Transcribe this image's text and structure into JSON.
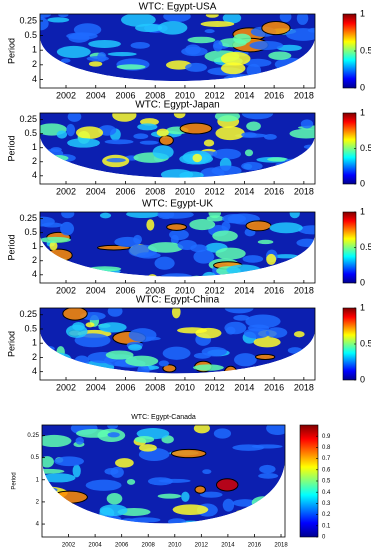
{
  "chart_data": [
    {
      "type": "wavelet-coherence",
      "title": "WTC: Egypt-USA",
      "ylabel": "Period",
      "colormap": "jet",
      "log_scale": true,
      "xlim": [
        2000.25,
        2018.75
      ],
      "xticks": [
        2002,
        2004,
        2006,
        2008,
        2010,
        2012,
        2014,
        2016,
        2018
      ],
      "ylim": [
        0.18,
        6
      ],
      "yticks": [
        0.25,
        0.5,
        1,
        2,
        4
      ],
      "colorbar": {
        "lim": [
          0,
          1
        ],
        "ticks": [
          0,
          0.5,
          1
        ]
      }
    },
    {
      "type": "wavelet-coherence",
      "title": "WTC: Egypt-Japan",
      "ylabel": "Period",
      "colormap": "jet",
      "log_scale": true,
      "xlim": [
        2000.25,
        2018.75
      ],
      "xticks": [
        2002,
        2004,
        2006,
        2008,
        2010,
        2012,
        2014,
        2016,
        2018
      ],
      "ylim": [
        0.18,
        6
      ],
      "yticks": [
        0.25,
        0.5,
        1,
        2,
        4
      ],
      "colorbar": {
        "lim": [
          0,
          1
        ],
        "ticks": [
          0,
          0.5,
          1
        ]
      }
    },
    {
      "type": "wavelet-coherence",
      "title": "WTC: Egypt-UK",
      "ylabel": "Period",
      "colormap": "jet",
      "log_scale": true,
      "xlim": [
        2000.25,
        2018.75
      ],
      "xticks": [
        2002,
        2004,
        2006,
        2008,
        2010,
        2012,
        2014,
        2016,
        2018
      ],
      "ylim": [
        0.18,
        6
      ],
      "yticks": [
        0.25,
        0.5,
        1,
        2,
        4
      ],
      "colorbar": {
        "lim": [
          0,
          1
        ],
        "ticks": [
          0,
          0.5,
          1
        ]
      }
    },
    {
      "type": "wavelet-coherence",
      "title": "WTC: Egypt-China",
      "ylabel": "Period",
      "colormap": "jet",
      "log_scale": true,
      "xlim": [
        2000.25,
        2018.75
      ],
      "xticks": [
        2002,
        2004,
        2006,
        2008,
        2010,
        2012,
        2014,
        2016,
        2018
      ],
      "ylim": [
        0.18,
        6
      ],
      "yticks": [
        0.25,
        0.5,
        1,
        2,
        4
      ],
      "colorbar": {
        "lim": [
          0,
          1
        ],
        "ticks": [
          0,
          0.5,
          1
        ]
      }
    },
    {
      "type": "wavelet-coherence",
      "title": "WTC: Egypt-Canada",
      "ylabel": "Period",
      "colormap": "jet",
      "log_scale": true,
      "xlim": [
        2000,
        2018.3
      ],
      "xticks": [
        2002,
        2004,
        2006,
        2008,
        2010,
        2012,
        2014,
        2016,
        2018
      ],
      "ylim": [
        0.18,
        6
      ],
      "yticks": [
        0.25,
        0.5,
        1,
        2,
        4
      ],
      "colorbar": {
        "lim": [
          0,
          1
        ],
        "ticks": [
          0,
          0.1,
          0.2,
          0.3,
          0.4,
          0.5,
          0.6,
          0.7,
          0.8,
          0.9
        ]
      }
    }
  ]
}
